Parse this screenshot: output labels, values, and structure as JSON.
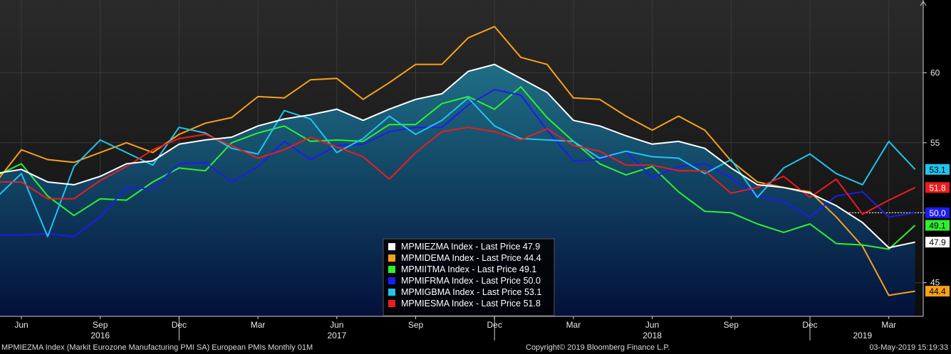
{
  "colors": {
    "background_top": "#2a2a2a",
    "background_bottom": "#0c0c0c",
    "area_top": "#1f6f86",
    "area_bottom": "#03103a",
    "grid": "#3a3a3a",
    "axis_text": "#e8e8e8"
  },
  "chart_data": {
    "type": "line",
    "x": [
      "2016-05",
      "2016-06",
      "2016-07",
      "2016-08",
      "2016-09",
      "2016-10",
      "2016-11",
      "2016-12",
      "2017-01",
      "2017-02",
      "2017-03",
      "2017-04",
      "2017-05",
      "2017-06",
      "2017-07",
      "2017-08",
      "2017-09",
      "2017-10",
      "2017-11",
      "2017-12",
      "2018-01",
      "2018-02",
      "2018-03",
      "2018-04",
      "2018-05",
      "2018-06",
      "2018-07",
      "2018-08",
      "2018-09",
      "2018-10",
      "2018-11",
      "2018-12",
      "2019-01",
      "2019-02",
      "2019-03",
      "2019-04"
    ],
    "x_tick_months": [
      {
        "x": "2016-06",
        "label": "Jun"
      },
      {
        "x": "2016-09",
        "label": "Sep"
      },
      {
        "x": "2016-12",
        "label": "Dec"
      },
      {
        "x": "2017-03",
        "label": "Mar"
      },
      {
        "x": "2017-06",
        "label": "Jun"
      },
      {
        "x": "2017-09",
        "label": "Sep"
      },
      {
        "x": "2017-12",
        "label": "Dec"
      },
      {
        "x": "2018-03",
        "label": "Mar"
      },
      {
        "x": "2018-06",
        "label": "Jun"
      },
      {
        "x": "2018-09",
        "label": "Sep"
      },
      {
        "x": "2018-12",
        "label": "Dec"
      },
      {
        "x": "2019-03",
        "label": "Mar"
      }
    ],
    "x_tick_years": [
      {
        "x": "2016-09",
        "label": "2016"
      },
      {
        "x": "2017-06",
        "label": "2017"
      },
      {
        "x": "2018-06",
        "label": "2018"
      },
      {
        "x": "2019-02",
        "label": "2019"
      }
    ],
    "year_separators": [
      "2016-12",
      "2017-12",
      "2018-12"
    ],
    "y_ticks": [
      45,
      50,
      55,
      60
    ],
    "ylim": [
      42.6,
      65.2
    ],
    "reference_line": 50,
    "grid": true,
    "legend_position": "bottom-center",
    "series": [
      {
        "name": "MPMIEZMA Index - Last Price",
        "last": "47.9",
        "color": "#ffffff",
        "width": 2,
        "filled": true,
        "values": [
          52.8,
          53.1,
          52.2,
          52.0,
          52.6,
          53.5,
          53.7,
          54.9,
          55.2,
          55.4,
          56.2,
          56.7,
          57.0,
          57.4,
          56.6,
          57.4,
          58.1,
          58.5,
          60.1,
          60.6,
          59.6,
          58.6,
          56.6,
          56.2,
          55.5,
          54.9,
          55.1,
          54.6,
          53.2,
          52.0,
          51.8,
          51.4,
          50.5,
          49.3,
          47.5,
          47.9
        ]
      },
      {
        "name": "MPMIDEMA Index - Last Price",
        "last": "44.4",
        "color": "#f7a11a",
        "width": 2,
        "values": [
          52.1,
          54.5,
          53.8,
          53.6,
          54.3,
          55.0,
          54.3,
          55.6,
          56.4,
          56.8,
          58.3,
          58.2,
          59.5,
          59.6,
          58.1,
          59.3,
          60.6,
          60.6,
          62.5,
          63.3,
          61.1,
          60.6,
          58.2,
          58.1,
          56.9,
          55.9,
          56.9,
          55.9,
          53.7,
          52.2,
          51.8,
          51.5,
          49.7,
          47.6,
          44.1,
          44.4
        ]
      },
      {
        "name": "MPMIITMA Index - Last Price",
        "last": "49.1",
        "color": "#2ef02e",
        "width": 2,
        "values": [
          52.6,
          53.5,
          51.2,
          49.8,
          51.0,
          50.9,
          52.2,
          53.2,
          53.0,
          55.0,
          55.7,
          56.2,
          55.1,
          55.2,
          55.1,
          56.3,
          56.3,
          57.8,
          58.3,
          57.4,
          59.0,
          56.8,
          55.1,
          53.5,
          52.7,
          53.3,
          51.5,
          50.1,
          50.0,
          49.2,
          48.6,
          49.2,
          47.8,
          47.7,
          47.4,
          49.1
        ]
      },
      {
        "name": "MPMIFRMA Index - Last Price",
        "last": "50.0",
        "color": "#1c1cf2",
        "width": 2,
        "values": [
          48.4,
          48.4,
          48.5,
          48.3,
          49.7,
          51.8,
          51.7,
          53.5,
          53.6,
          52.2,
          53.3,
          55.1,
          53.8,
          54.8,
          54.9,
          55.8,
          56.1,
          56.1,
          57.7,
          58.8,
          58.4,
          55.9,
          53.7,
          53.8,
          54.4,
          52.5,
          53.3,
          53.5,
          52.5,
          51.2,
          50.8,
          49.7,
          51.2,
          51.5,
          49.7,
          50.0
        ]
      },
      {
        "name": "MPMIGBMA Index - Last Price",
        "last": "53.1",
        "color": "#22c4ee",
        "width": 2,
        "values": [
          51.0,
          52.8,
          48.3,
          53.3,
          55.2,
          54.3,
          53.4,
          56.1,
          55.7,
          54.6,
          54.2,
          57.3,
          56.7,
          54.3,
          55.3,
          56.9,
          55.6,
          56.6,
          58.2,
          56.2,
          55.3,
          55.2,
          55.1,
          53.9,
          54.4,
          54.0,
          53.9,
          52.8,
          53.8,
          51.1,
          53.2,
          54.2,
          52.8,
          52.0,
          55.1,
          53.1
        ]
      },
      {
        "name": "MPMIESMA Index - Last Price",
        "last": "51.8",
        "color": "#ee1c1c",
        "width": 2,
        "values": [
          52.2,
          52.2,
          51.0,
          51.0,
          52.3,
          53.3,
          54.5,
          55.3,
          55.6,
          54.8,
          53.9,
          54.5,
          55.4,
          54.7,
          54.0,
          52.4,
          54.3,
          55.8,
          56.1,
          55.8,
          55.2,
          56.0,
          54.8,
          54.4,
          53.4,
          53.4,
          53.0,
          53.0,
          51.4,
          51.8,
          52.6,
          51.1,
          52.4,
          49.9,
          50.9,
          51.8
        ]
      }
    ]
  },
  "footer": {
    "left": "MPMIEZMA Index (Markit Eurozone Manufacturing PMI SA) European PMIs  Monthly 01M",
    "center": "Copyright© 2019 Bloomberg Finance L.P.",
    "right": "03-May-2019 15:19:33"
  }
}
